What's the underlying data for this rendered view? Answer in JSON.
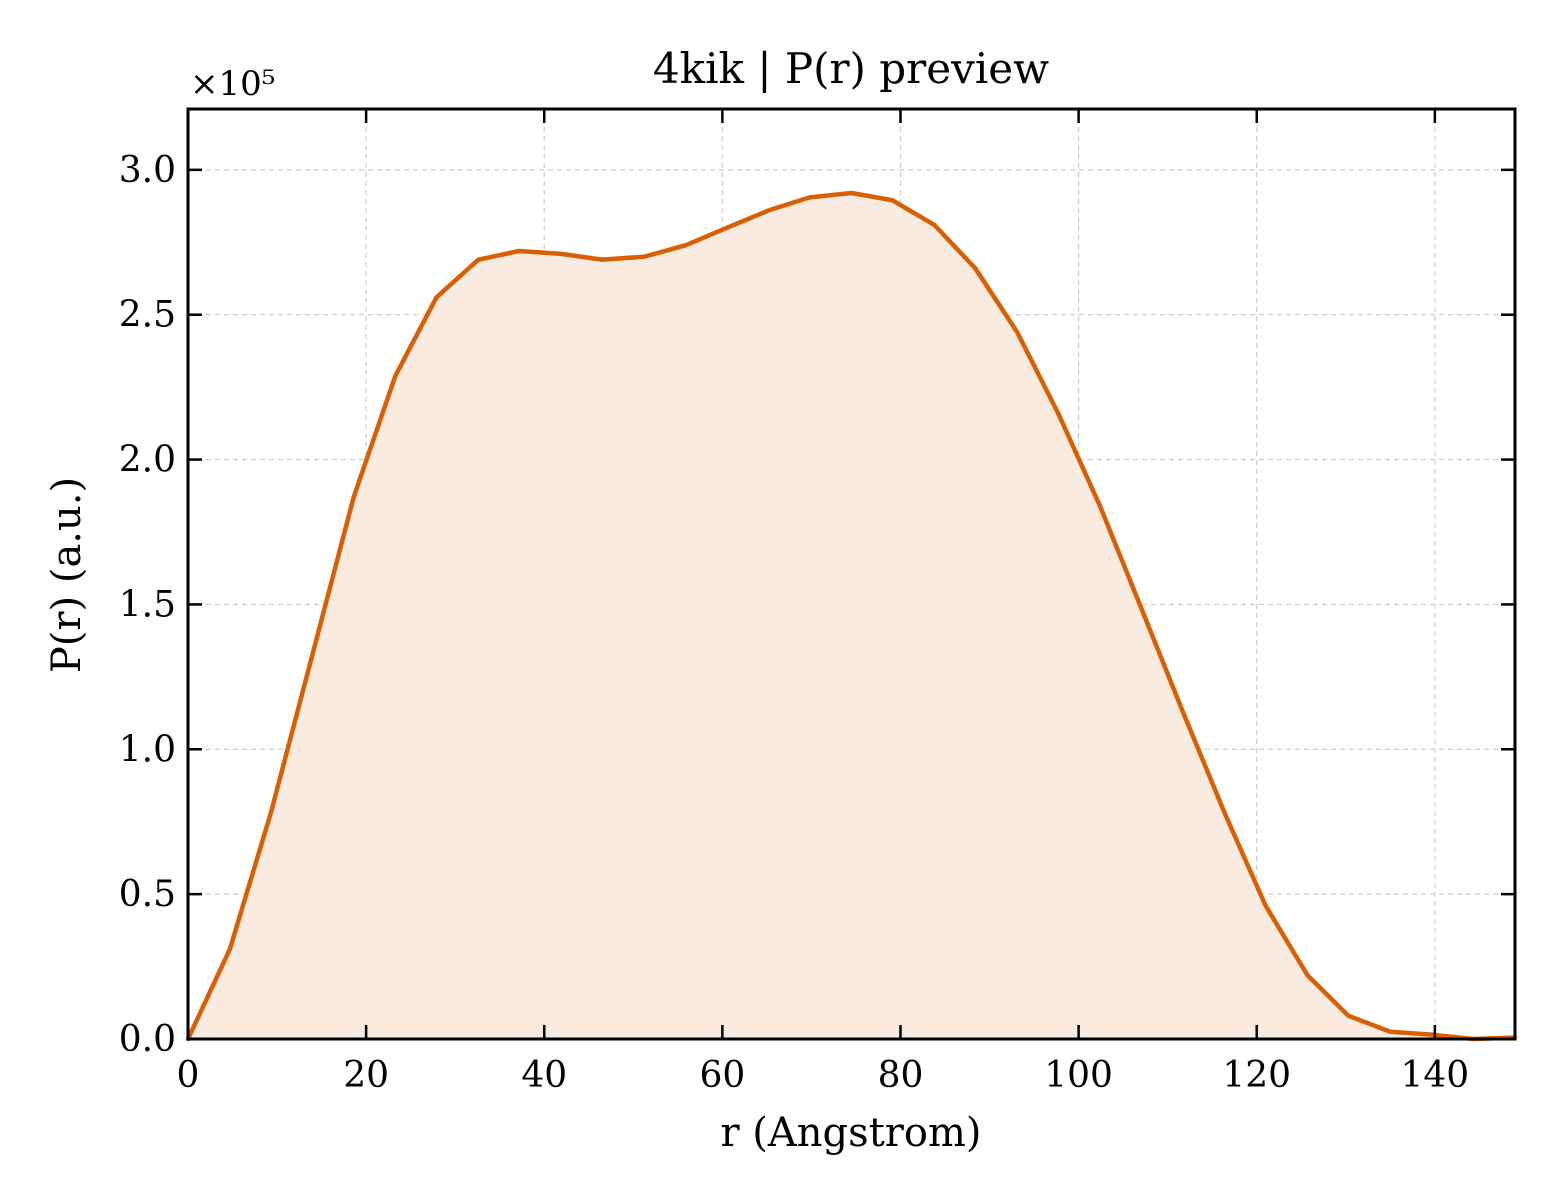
{
  "chart_data": {
    "type": "area",
    "title": "4kik | P(r) preview",
    "xlabel": "r (Angstrom)",
    "ylabel": "P(r) (a.u.)",
    "y_multiplier_label": "×10⁵",
    "xlim": [
      0,
      149
    ],
    "ylim": [
      0,
      3.21
    ],
    "xticks": [
      0,
      20,
      40,
      60,
      80,
      100,
      120,
      140
    ],
    "yticks": [
      0.0,
      0.5,
      1.0,
      1.5,
      2.0,
      2.5,
      3.0
    ],
    "grid": true,
    "line_color": "#d95f02",
    "fill_color": "#f9ebe0",
    "series": [
      {
        "x": [
          0,
          4.7,
          9.3,
          14.0,
          18.6,
          23.3,
          27.9,
          32.6,
          37.2,
          41.9,
          46.5,
          51.2,
          55.9,
          60.5,
          65.2,
          69.8,
          74.5,
          79.1,
          83.8,
          88.4,
          93.1,
          97.7,
          102.4,
          107.0,
          111.7,
          116.4,
          121.0,
          125.7,
          130.3,
          135.0,
          139.6,
          144.3,
          149.0
        ],
        "y": [
          0.0,
          0.31,
          0.78,
          1.33,
          1.87,
          2.29,
          2.56,
          2.69,
          2.72,
          2.71,
          2.69,
          2.7,
          2.74,
          2.8,
          2.86,
          2.905,
          2.92,
          2.895,
          2.81,
          2.66,
          2.44,
          2.16,
          1.84,
          1.49,
          1.13,
          0.78,
          0.46,
          0.22,
          0.08,
          0.025,
          0.015,
          0.0,
          0.005
        ]
      }
    ]
  }
}
